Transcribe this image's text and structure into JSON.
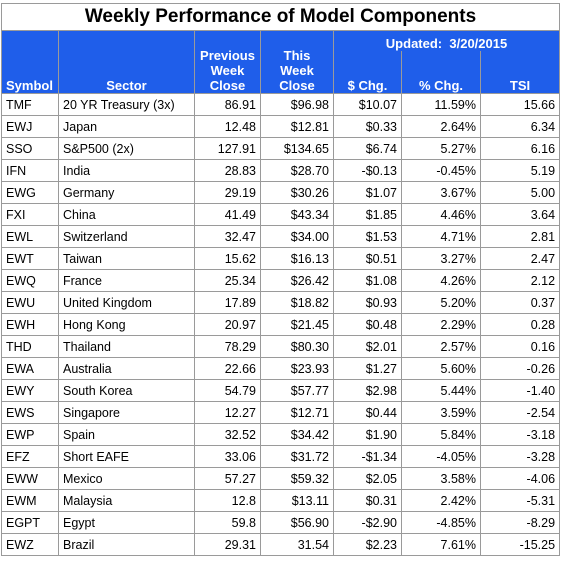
{
  "title": "Weekly Performance of Model Components",
  "updated_label": "Updated:",
  "updated_date": "3/20/2015",
  "headers": {
    "symbol": "Symbol",
    "sector": "Sector",
    "prev_close": "Previous Week Close",
    "this_close": "This Week Close",
    "dollar_chg": "$ Chg.",
    "pct_chg": "% Chg.",
    "tsi": "TSI"
  },
  "colors": {
    "header_bg": "#1f5eea",
    "header_text": "#ffffff",
    "negative": "#e8251f"
  },
  "rows": [
    {
      "symbol": "TMF",
      "sector": "20 YR Treasury  (3x)",
      "prev": "86.91",
      "cur": "$96.98",
      "chg": "$10.07",
      "pct": "11.59%",
      "tsi": "15.66"
    },
    {
      "symbol": "EWJ",
      "sector": "Japan",
      "prev": "12.48",
      "cur": "$12.81",
      "chg": "$0.33",
      "pct": "2.64%",
      "tsi": "6.34"
    },
    {
      "symbol": "SSO",
      "sector": "S&P500 (2x)",
      "prev": "127.91",
      "cur": "$134.65",
      "chg": "$6.74",
      "pct": "5.27%",
      "tsi": "6.16"
    },
    {
      "symbol": "IFN",
      "sector": "India",
      "prev": "28.83",
      "cur": "$28.70",
      "chg": "-$0.13",
      "pct": "-0.45%",
      "tsi": "5.19"
    },
    {
      "symbol": "EWG",
      "sector": "Germany",
      "prev": "29.19",
      "cur": "$30.26",
      "chg": "$1.07",
      "pct": "3.67%",
      "tsi": "5.00"
    },
    {
      "symbol": "FXI",
      "sector": "China",
      "prev": "41.49",
      "cur": "$43.34",
      "chg": "$1.85",
      "pct": "4.46%",
      "tsi": "3.64"
    },
    {
      "symbol": "EWL",
      "sector": "Switzerland",
      "prev": "32.47",
      "cur": "$34.00",
      "chg": "$1.53",
      "pct": "4.71%",
      "tsi": "2.81"
    },
    {
      "symbol": "EWT",
      "sector": "Taiwan",
      "prev": "15.62",
      "cur": "$16.13",
      "chg": "$0.51",
      "pct": "3.27%",
      "tsi": "2.47"
    },
    {
      "symbol": "EWQ",
      "sector": "France",
      "prev": "25.34",
      "cur": "$26.42",
      "chg": "$1.08",
      "pct": "4.26%",
      "tsi": "2.12"
    },
    {
      "symbol": "EWU",
      "sector": "United Kingdom",
      "prev": "17.89",
      "cur": "$18.82",
      "chg": "$0.93",
      "pct": "5.20%",
      "tsi": "0.37"
    },
    {
      "symbol": "EWH",
      "sector": "Hong Kong",
      "prev": "20.97",
      "cur": "$21.45",
      "chg": "$0.48",
      "pct": "2.29%",
      "tsi": "0.28"
    },
    {
      "symbol": "THD",
      "sector": "Thailand",
      "prev": "78.29",
      "cur": "$80.30",
      "chg": "$2.01",
      "pct": "2.57%",
      "tsi": "0.16"
    },
    {
      "symbol": "EWA",
      "sector": "Australia",
      "prev": "22.66",
      "cur": "$23.93",
      "chg": "$1.27",
      "pct": "5.60%",
      "tsi": "-0.26"
    },
    {
      "symbol": "EWY",
      "sector": "South Korea",
      "prev": "54.79",
      "cur": "$57.77",
      "chg": "$2.98",
      "pct": "5.44%",
      "tsi": "-1.40"
    },
    {
      "symbol": "EWS",
      "sector": "Singapore",
      "prev": "12.27",
      "cur": "$12.71",
      "chg": "$0.44",
      "pct": "3.59%",
      "tsi": "-2.54"
    },
    {
      "symbol": "EWP",
      "sector": "Spain",
      "prev": "32.52",
      "cur": "$34.42",
      "chg": "$1.90",
      "pct": "5.84%",
      "tsi": "-3.18"
    },
    {
      "symbol": "EFZ",
      "sector": "Short EAFE",
      "prev": "33.06",
      "cur": "$31.72",
      "chg": "-$1.34",
      "pct": "-4.05%",
      "tsi": "-3.28"
    },
    {
      "symbol": "EWW",
      "sector": "Mexico",
      "prev": "57.27",
      "cur": "$59.32",
      "chg": "$2.05",
      "pct": "3.58%",
      "tsi": "-4.06"
    },
    {
      "symbol": "EWM",
      "sector": "Malaysia",
      "prev": "12.8",
      "cur": "$13.11",
      "chg": "$0.31",
      "pct": "2.42%",
      "tsi": "-5.31"
    },
    {
      "symbol": "EGPT",
      "sector": "Egypt",
      "prev": "59.8",
      "cur": "$56.90",
      "chg": "-$2.90",
      "pct": "-4.85%",
      "tsi": "-8.29"
    },
    {
      "symbol": "EWZ",
      "sector": "Brazil",
      "prev": "29.31",
      "cur": "31.54",
      "chg": "$2.23",
      "pct": "7.61%",
      "tsi": "-15.25"
    }
  ]
}
